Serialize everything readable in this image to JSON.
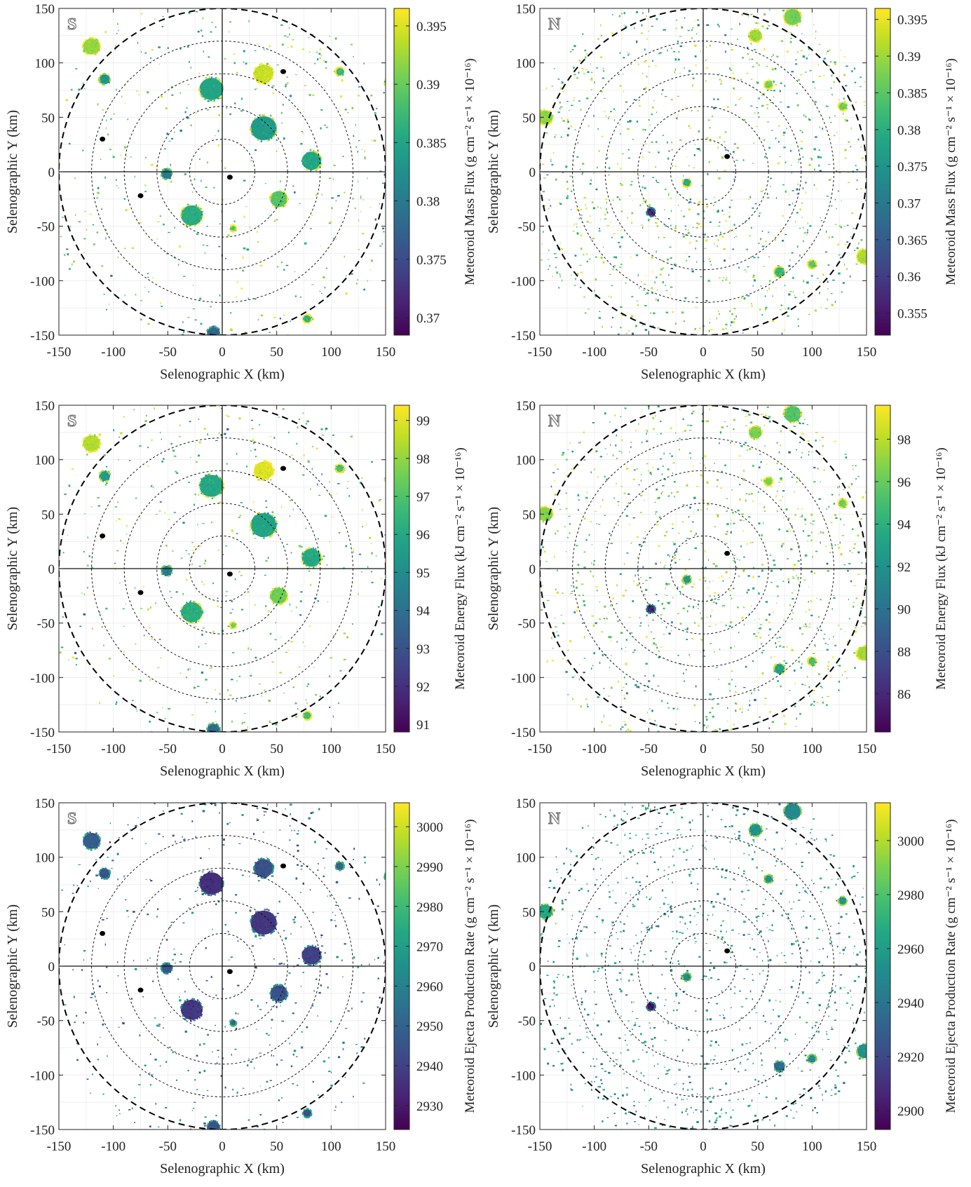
{
  "figure": {
    "x_label": "Selenographic X (km)",
    "y_label": "Selenographic Y (km)",
    "x_ticks": [
      "-150",
      "-100",
      "-50",
      "0",
      "50",
      "100",
      "150"
    ],
    "y_ticks": [
      "150",
      "100",
      "50",
      "0",
      "-50",
      "-100",
      "-150"
    ]
  },
  "chart_data": [
    {
      "type": "heatmap",
      "pole": "S",
      "xlabel": "Selenographic X (km)",
      "ylabel": "Selenographic Y (km)",
      "xlim": [
        -150,
        150
      ],
      "ylim": [
        -150,
        150
      ],
      "colorbar": {
        "label": "Meteoroid Mass Flux (g cm⁻² s⁻¹ × 10⁻¹⁶)",
        "range": [
          0.3685,
          0.3965
        ],
        "ticks": [
          0.395,
          0.39,
          0.385,
          0.38,
          0.375,
          0.37
        ],
        "tick_labels": [
          "0.395",
          "0.39",
          "0.385",
          "0.38",
          "0.375",
          "0.37"
        ]
      },
      "blobs": [
        {
          "x": -10,
          "y": 76,
          "r": 11,
          "v": 0.385
        },
        {
          "x": 38,
          "y": 40,
          "r": 12,
          "v": 0.384
        },
        {
          "x": 82,
          "y": 10,
          "r": 9,
          "v": 0.385
        },
        {
          "x": -28,
          "y": -40,
          "r": 10,
          "v": 0.386
        },
        {
          "x": -51,
          "y": -2,
          "r": 5,
          "v": 0.38
        },
        {
          "x": 38,
          "y": 90,
          "r": 9,
          "v": 0.394
        },
        {
          "x": -120,
          "y": 115,
          "r": 8,
          "v": 0.392
        },
        {
          "x": 52,
          "y": -25,
          "r": 8,
          "v": 0.389
        },
        {
          "x": -108,
          "y": 85,
          "r": 5,
          "v": 0.383
        },
        {
          "x": 155,
          "y": 82,
          "r": 6,
          "v": 0.387
        },
        {
          "x": -8,
          "y": -148,
          "r": 6,
          "v": 0.378
        },
        {
          "x": 108,
          "y": 92,
          "r": 4,
          "v": 0.387
        },
        {
          "x": 10,
          "y": -52,
          "r": 3,
          "v": 0.389
        },
        {
          "x": 78,
          "y": -135,
          "r": 4,
          "v": 0.387
        }
      ],
      "dark_spots": [
        [
          -110,
          30
        ],
        [
          -75,
          -22
        ],
        [
          7,
          -5
        ],
        [
          56,
          92
        ]
      ]
    },
    {
      "type": "heatmap",
      "pole": "N",
      "xlabel": "Selenographic X (km)",
      "ylabel": "Selenographic Y (km)",
      "xlim": [
        -150,
        150
      ],
      "ylim": [
        -150,
        150
      ],
      "colorbar": {
        "label": "Meteoroid Mass Flux (g cm⁻² s⁻¹ × 10⁻¹⁶)",
        "range": [
          0.352,
          0.3965
        ],
        "ticks": [
          0.395,
          0.39,
          0.385,
          0.38,
          0.375,
          0.37,
          0.365,
          0.36,
          0.355
        ],
        "tick_labels": [
          "0.395",
          "0.39",
          "0.385",
          "0.38",
          "0.375",
          "0.37",
          "0.365",
          "0.36",
          "0.355"
        ]
      },
      "blobs": [
        {
          "x": 82,
          "y": 142,
          "r": 8,
          "v": 0.387
        },
        {
          "x": 48,
          "y": 125,
          "r": 6,
          "v": 0.39
        },
        {
          "x": -145,
          "y": 50,
          "r": 7,
          "v": 0.389
        },
        {
          "x": 148,
          "y": -78,
          "r": 7,
          "v": 0.391
        },
        {
          "x": 70,
          "y": -92,
          "r": 5,
          "v": 0.381
        },
        {
          "x": 100,
          "y": -85,
          "r": 4,
          "v": 0.385
        },
        {
          "x": -48,
          "y": -37,
          "r": 4,
          "v": 0.358
        },
        {
          "x": -15,
          "y": -10,
          "r": 4,
          "v": 0.38
        },
        {
          "x": 128,
          "y": 60,
          "r": 4,
          "v": 0.387
        },
        {
          "x": 60,
          "y": 80,
          "r": 4,
          "v": 0.388
        }
      ],
      "dark_spots": [
        [
          22,
          14
        ]
      ]
    },
    {
      "type": "heatmap",
      "pole": "S",
      "xlabel": "Selenographic X (km)",
      "ylabel": "Selenographic Y (km)",
      "xlim": [
        -150,
        150
      ],
      "ylim": [
        -150,
        150
      ],
      "colorbar": {
        "label": "Meteoroid Energy Flux  (kJ cm⁻² s⁻¹ × 10⁻¹⁶)",
        "range": [
          90.8,
          99.4
        ],
        "ticks": [
          99,
          98,
          97,
          96,
          95,
          94,
          93,
          92,
          91
        ],
        "tick_labels": [
          "99",
          "98",
          "97",
          "96",
          "95",
          "94",
          "93",
          "92",
          "91"
        ]
      },
      "blobs": [
        {
          "x": -10,
          "y": 76,
          "r": 11,
          "v": 96.0
        },
        {
          "x": 38,
          "y": 40,
          "r": 12,
          "v": 95.8
        },
        {
          "x": 82,
          "y": 10,
          "r": 9,
          "v": 96.0
        },
        {
          "x": -28,
          "y": -40,
          "r": 10,
          "v": 96.2
        },
        {
          "x": -51,
          "y": -2,
          "r": 5,
          "v": 94.5
        },
        {
          "x": 38,
          "y": 90,
          "r": 9,
          "v": 99.0
        },
        {
          "x": -120,
          "y": 115,
          "r": 8,
          "v": 98.4
        },
        {
          "x": 52,
          "y": -25,
          "r": 8,
          "v": 97.5
        },
        {
          "x": -108,
          "y": 85,
          "r": 5,
          "v": 95.5
        },
        {
          "x": 155,
          "y": 82,
          "r": 6,
          "v": 96.8
        },
        {
          "x": -8,
          "y": -148,
          "r": 6,
          "v": 93.8
        },
        {
          "x": 108,
          "y": 92,
          "r": 4,
          "v": 96.8
        },
        {
          "x": 10,
          "y": -52,
          "r": 3,
          "v": 97.5
        },
        {
          "x": 78,
          "y": -135,
          "r": 4,
          "v": 96.8
        }
      ],
      "dark_spots": [
        [
          -110,
          30
        ],
        [
          -75,
          -22
        ],
        [
          7,
          -5
        ],
        [
          56,
          92
        ]
      ]
    },
    {
      "type": "heatmap",
      "pole": "N",
      "xlabel": "Selenographic X (km)",
      "ylabel": "Selenographic Y (km)",
      "xlim": [
        -150,
        150
      ],
      "ylim": [
        -150,
        150
      ],
      "colorbar": {
        "label": "Meteoroid Energy Flux  (kJ cm⁻² s⁻¹ × 10⁻¹⁶)",
        "range": [
          84.2,
          99.6
        ],
        "ticks": [
          98,
          96,
          94,
          92,
          90,
          88,
          86
        ],
        "tick_labels": [
          "98",
          "96",
          "94",
          "92",
          "90",
          "88",
          "86"
        ]
      },
      "blobs": [
        {
          "x": 82,
          "y": 142,
          "r": 8,
          "v": 95.5
        },
        {
          "x": 48,
          "y": 125,
          "r": 6,
          "v": 96.5
        },
        {
          "x": -145,
          "y": 50,
          "r": 7,
          "v": 96.8
        },
        {
          "x": 148,
          "y": -78,
          "r": 7,
          "v": 97.5
        },
        {
          "x": 70,
          "y": -92,
          "r": 5,
          "v": 93.0
        },
        {
          "x": 100,
          "y": -85,
          "r": 4,
          "v": 95.0
        },
        {
          "x": -48,
          "y": -37,
          "r": 4,
          "v": 86.0
        },
        {
          "x": -15,
          "y": -10,
          "r": 4,
          "v": 92.5
        },
        {
          "x": 128,
          "y": 60,
          "r": 4,
          "v": 96.0
        },
        {
          "x": 60,
          "y": 80,
          "r": 4,
          "v": 96.5
        }
      ],
      "dark_spots": [
        [
          22,
          14
        ]
      ]
    },
    {
      "type": "heatmap",
      "pole": "S",
      "xlabel": "Selenographic X (km)",
      "ylabel": "Selenographic Y (km)",
      "xlim": [
        -150,
        150
      ],
      "ylim": [
        -150,
        150
      ],
      "colorbar": {
        "label": "Meteoroid Ejecta Production Rate (g cm⁻² s⁻¹ × 10⁻¹⁶)",
        "range": [
          2924,
          3006
        ],
        "ticks": [
          3000,
          2990,
          2980,
          2970,
          2960,
          2950,
          2940,
          2930
        ],
        "tick_labels": [
          "3000",
          "2990",
          "2980",
          "2970",
          "2960",
          "2950",
          "2940",
          "2930"
        ]
      },
      "blobs": [
        {
          "x": -10,
          "y": 76,
          "r": 11,
          "v": 2935
        },
        {
          "x": 38,
          "y": 40,
          "r": 12,
          "v": 2937
        },
        {
          "x": 82,
          "y": 10,
          "r": 9,
          "v": 2940
        },
        {
          "x": -28,
          "y": -40,
          "r": 10,
          "v": 2938
        },
        {
          "x": -51,
          "y": -2,
          "r": 5,
          "v": 2945
        },
        {
          "x": 38,
          "y": 90,
          "r": 9,
          "v": 2945
        },
        {
          "x": -120,
          "y": 115,
          "r": 8,
          "v": 2948
        },
        {
          "x": 52,
          "y": -25,
          "r": 8,
          "v": 2945
        },
        {
          "x": -108,
          "y": 85,
          "r": 5,
          "v": 2945
        },
        {
          "x": 155,
          "y": 82,
          "r": 6,
          "v": 2950
        },
        {
          "x": -8,
          "y": -148,
          "r": 6,
          "v": 2945
        },
        {
          "x": 108,
          "y": 92,
          "r": 4,
          "v": 2952
        },
        {
          "x": 10,
          "y": -52,
          "r": 3,
          "v": 2950
        },
        {
          "x": 78,
          "y": -135,
          "r": 4,
          "v": 2945
        }
      ],
      "dark_spots": [
        [
          -110,
          30
        ],
        [
          -75,
          -22
        ],
        [
          7,
          -5
        ],
        [
          56,
          92
        ]
      ]
    },
    {
      "type": "heatmap",
      "pole": "N",
      "xlabel": "Selenographic X (km)",
      "ylabel": "Selenographic Y (km)",
      "xlim": [
        -150,
        150
      ],
      "ylim": [
        -150,
        150
      ],
      "colorbar": {
        "label": "Meteoroid Ejecta Production Rate (g cm⁻² s⁻¹ × 10⁻¹⁶)",
        "range": [
          2893,
          3014
        ],
        "ticks": [
          3000,
          2980,
          2960,
          2940,
          2920,
          2900
        ],
        "tick_labels": [
          "3000",
          "2980",
          "2960",
          "2940",
          "2920",
          "2900"
        ]
      },
      "blobs": [
        {
          "x": 82,
          "y": 142,
          "r": 8,
          "v": 2950
        },
        {
          "x": 48,
          "y": 125,
          "r": 6,
          "v": 2955
        },
        {
          "x": -145,
          "y": 50,
          "r": 7,
          "v": 2965
        },
        {
          "x": 148,
          "y": -78,
          "r": 7,
          "v": 2955
        },
        {
          "x": 70,
          "y": -92,
          "r": 5,
          "v": 2935
        },
        {
          "x": 100,
          "y": -85,
          "r": 4,
          "v": 2950
        },
        {
          "x": -48,
          "y": -37,
          "r": 4,
          "v": 2900
        },
        {
          "x": -15,
          "y": -10,
          "r": 4,
          "v": 2950
        },
        {
          "x": 128,
          "y": 60,
          "r": 4,
          "v": 2955
        },
        {
          "x": 60,
          "y": 80,
          "r": 4,
          "v": 2955
        }
      ],
      "dark_spots": [
        [
          22,
          14
        ]
      ]
    }
  ]
}
